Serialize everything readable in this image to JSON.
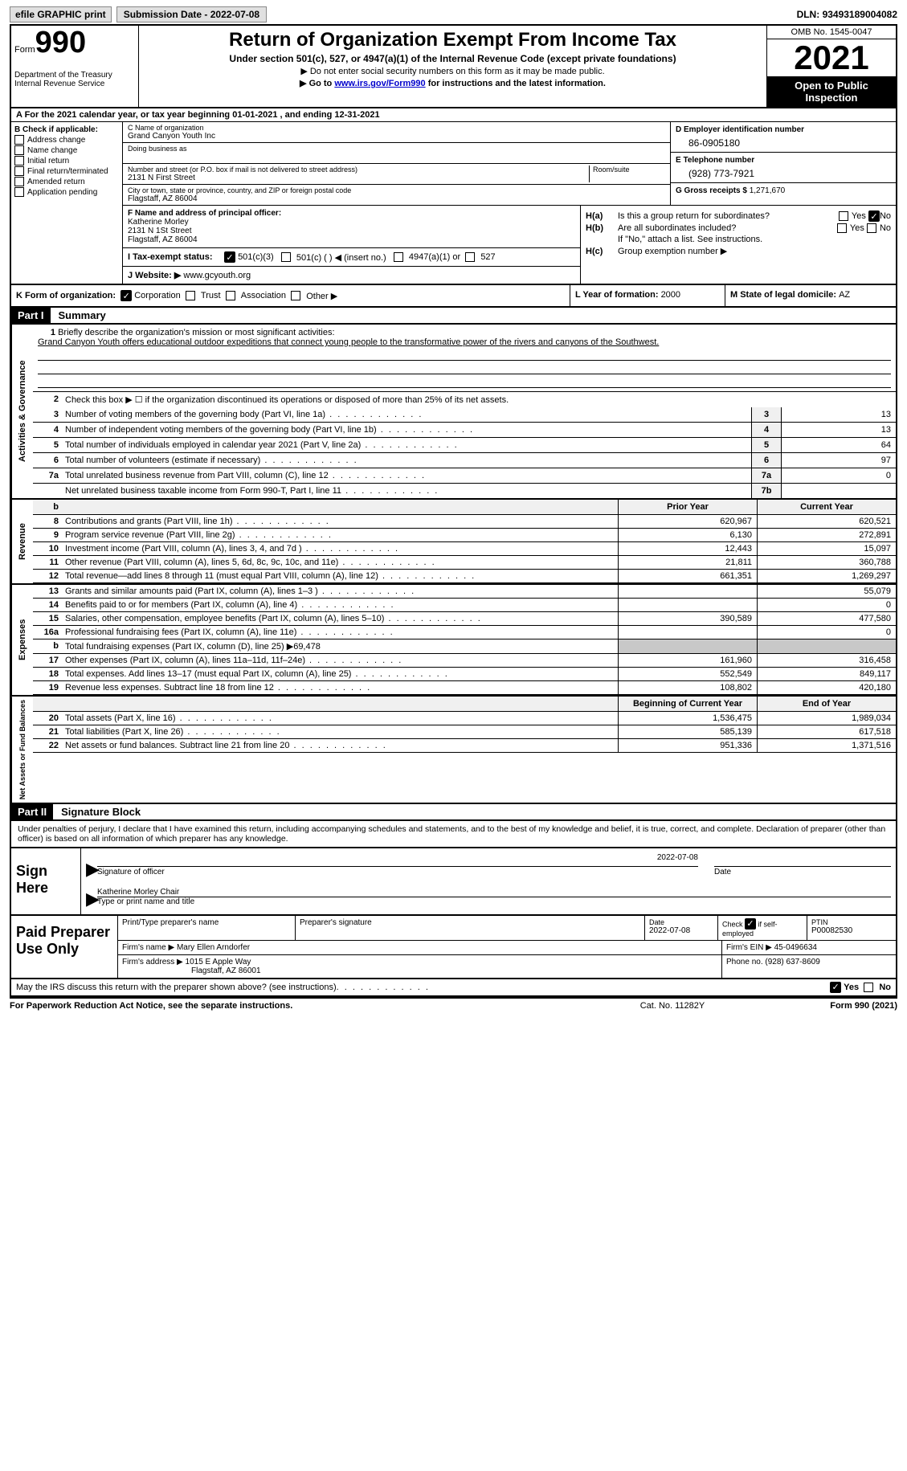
{
  "topbar": {
    "efile": "efile GRAPHIC print",
    "submission_label": "Submission Date - ",
    "submission_date": "2022-07-08",
    "dln_label": "DLN: ",
    "dln": "93493189004082"
  },
  "header": {
    "form_word": "Form",
    "form_num": "990",
    "dept": "Department of the Treasury\nInternal Revenue Service",
    "title": "Return of Organization Exempt From Income Tax",
    "sub1": "Under section 501(c), 527, or 4947(a)(1) of the Internal Revenue Code (except private foundations)",
    "sub2": "▶ Do not enter social security numbers on this form as it may be made public.",
    "sub3_pre": "▶ Go to ",
    "sub3_link": "www.irs.gov/Form990",
    "sub3_post": " for instructions and the latest information.",
    "omb": "OMB No. 1545-0047",
    "year": "2021",
    "open": "Open to Public Inspection"
  },
  "period": {
    "text_a": "A For the 2021 calendar year, or tax year beginning ",
    "begin": "01-01-2021",
    "mid": "   , and ending ",
    "end": "12-31-2021"
  },
  "colB": {
    "hdr": "B Check if applicable:",
    "opts": [
      "Address change",
      "Name change",
      "Initial return",
      "Final return/terminated",
      "Amended return",
      "Application pending"
    ]
  },
  "colC": {
    "name_lbl": "C Name of organization",
    "name": "Grand Canyon Youth Inc",
    "dba_lbl": "Doing business as",
    "addr_lbl": "Number and street (or P.O. box if mail is not delivered to street address)",
    "room_lbl": "Room/suite",
    "addr": "2131 N First Street",
    "city_lbl": "City or town, state or province, country, and ZIP or foreign postal code",
    "city": "Flagstaff, AZ  86004"
  },
  "colD": {
    "ein_lbl": "D Employer identification number",
    "ein": "86-0905180",
    "tel_lbl": "E Telephone number",
    "tel": "(928) 773-7921",
    "gross_lbl": "G Gross receipts $ ",
    "gross": "1,271,670"
  },
  "F": {
    "lbl": "F  Name and address of principal officer:",
    "name": "Katherine Morley",
    "addr1": "2131 N 1St Street",
    "addr2": "Flagstaff, AZ  86004"
  },
  "H": {
    "a_lbl": "H(a)",
    "a_txt": "Is this a group return for subordinates?",
    "b_lbl": "H(b)",
    "b_txt": "Are all subordinates included?",
    "note": "If \"No,\" attach a list. See instructions.",
    "c_lbl": "H(c)",
    "c_txt": "Group exemption number ▶",
    "yes": "Yes",
    "no": "No"
  },
  "I": {
    "lbl": "I    Tax-exempt status:",
    "opts": [
      "501(c)(3)",
      "501(c) (  ) ◀ (insert no.)",
      "4947(a)(1) or",
      "527"
    ]
  },
  "J": {
    "lbl": "J   Website: ▶",
    "val": "  www.gcyouth.org"
  },
  "K": {
    "lbl": "K Form of organization:",
    "opts": [
      "Corporation",
      "Trust",
      "Association",
      "Other ▶"
    ],
    "L_lbl": "L Year of formation: ",
    "L_val": "2000",
    "M_lbl": "M State of legal domicile: ",
    "M_val": "AZ"
  },
  "part1": {
    "num": "Part I",
    "title": "Summary"
  },
  "summary": {
    "q1_lbl": "1",
    "q1_txt": "Briefly describe the organization's mission or most significant activities:",
    "mission": "Grand Canyon Youth offers educational outdoor expeditions that connect young people to the transformative power of the rivers and canyons of the Southwest.",
    "q2_lbl": "2",
    "q2_txt": "Check this box ▶ ☐  if the organization discontinued its operations or disposed of more than 25% of its net assets.",
    "rows_ag": [
      {
        "n": "3",
        "t": "Number of voting members of the governing body (Part VI, line 1a)",
        "box": "3",
        "v": "13"
      },
      {
        "n": "4",
        "t": "Number of independent voting members of the governing body (Part VI, line 1b)",
        "box": "4",
        "v": "13"
      },
      {
        "n": "5",
        "t": "Total number of individuals employed in calendar year 2021 (Part V, line 2a)",
        "box": "5",
        "v": "64"
      },
      {
        "n": "6",
        "t": "Total number of volunteers (estimate if necessary)",
        "box": "6",
        "v": "97"
      },
      {
        "n": "7a",
        "t": "Total unrelated business revenue from Part VIII, column (C), line 12",
        "box": "7a",
        "v": "0"
      },
      {
        "n": " ",
        "t": "Net unrelated business taxable income from Form 990-T, Part I, line 11",
        "box": "7b",
        "v": ""
      }
    ],
    "hdr_b": "b",
    "prior_hdr": "Prior Year",
    "curr_hdr": "Current Year",
    "rev_rows": [
      {
        "n": "8",
        "t": "Contributions and grants (Part VIII, line 1h)",
        "p": "620,967",
        "c": "620,521"
      },
      {
        "n": "9",
        "t": "Program service revenue (Part VIII, line 2g)",
        "p": "6,130",
        "c": "272,891"
      },
      {
        "n": "10",
        "t": "Investment income (Part VIII, column (A), lines 3, 4, and 7d )",
        "p": "12,443",
        "c": "15,097"
      },
      {
        "n": "11",
        "t": "Other revenue (Part VIII, column (A), lines 5, 6d, 8c, 9c, 10c, and 11e)",
        "p": "21,811",
        "c": "360,788"
      },
      {
        "n": "12",
        "t": "Total revenue—add lines 8 through 11 (must equal Part VIII, column (A), line 12)",
        "p": "661,351",
        "c": "1,269,297"
      }
    ],
    "exp_rows": [
      {
        "n": "13",
        "t": "Grants and similar amounts paid (Part IX, column (A), lines 1–3 )",
        "p": "",
        "c": "55,079"
      },
      {
        "n": "14",
        "t": "Benefits paid to or for members (Part IX, column (A), line 4)",
        "p": "",
        "c": "0"
      },
      {
        "n": "15",
        "t": "Salaries, other compensation, employee benefits (Part IX, column (A), lines 5–10)",
        "p": "390,589",
        "c": "477,580"
      },
      {
        "n": "16a",
        "t": "Professional fundraising fees (Part IX, column (A), line 11e)",
        "p": "",
        "c": "0"
      },
      {
        "n": "b",
        "t": "Total fundraising expenses (Part IX, column (D), line 25) ▶69,478",
        "p": "SHADE",
        "c": "SHADE"
      },
      {
        "n": "17",
        "t": "Other expenses (Part IX, column (A), lines 11a–11d, 11f–24e)",
        "p": "161,960",
        "c": "316,458"
      },
      {
        "n": "18",
        "t": "Total expenses. Add lines 13–17 (must equal Part IX, column (A), line 25)",
        "p": "552,549",
        "c": "849,117"
      },
      {
        "n": "19",
        "t": "Revenue less expenses. Subtract line 18 from line 12",
        "p": "108,802",
        "c": "420,180"
      }
    ],
    "na_hdr_l": "Beginning of Current Year",
    "na_hdr_r": "End of Year",
    "na_rows": [
      {
        "n": "20",
        "t": "Total assets (Part X, line 16)",
        "p": "1,536,475",
        "c": "1,989,034"
      },
      {
        "n": "21",
        "t": "Total liabilities (Part X, line 26)",
        "p": "585,139",
        "c": "617,518"
      },
      {
        "n": "22",
        "t": "Net assets or fund balances. Subtract line 21 from line 20",
        "p": "951,336",
        "c": "1,371,516"
      }
    ],
    "side_ag": "Activities & Governance",
    "side_rev": "Revenue",
    "side_exp": "Expenses",
    "side_na": "Net Assets or Fund Balances"
  },
  "part2": {
    "num": "Part II",
    "title": "Signature Block",
    "decl": "Under penalties of perjury, I declare that I have examined this return, including accompanying schedules and statements, and to the best of my knowledge and belief, it is true, correct, and complete. Declaration of preparer (other than officer) is based on all information of which preparer has any knowledge."
  },
  "sign": {
    "lbl": "Sign Here",
    "sig_of": "Signature of officer",
    "date": "2022-07-08",
    "date_lbl": "Date",
    "name": "Katherine Morley  Chair",
    "name_lbl": "Type or print name and title"
  },
  "prep": {
    "lbl": "Paid Preparer Use Only",
    "c1": "Print/Type preparer's name",
    "c2": "Preparer's signature",
    "c3_lbl": "Date",
    "c3": "2022-07-08",
    "c4_lbl": "Check ☑ if self-employed",
    "c5_lbl": "PTIN",
    "c5": "P00082530",
    "firm_name_lbl": "Firm's name    ▶ ",
    "firm_name": "Mary Ellen Arndorfer",
    "firm_ein_lbl": "Firm's EIN ▶ ",
    "firm_ein": "45-0496634",
    "firm_addr_lbl": "Firm's address ▶ ",
    "firm_addr1": "1015 E Apple Way",
    "firm_addr2": "Flagstaff, AZ  86001",
    "phone_lbl": "Phone no. ",
    "phone": "(928) 637-8609"
  },
  "discuss": {
    "txt": "May the IRS discuss this return with the preparer shown above? (see instructions)",
    "yes": "Yes",
    "no": "No"
  },
  "footer": {
    "left": "For Paperwork Reduction Act Notice, see the separate instructions.",
    "mid": "Cat. No. 11282Y",
    "right": "Form 990 (2021)"
  }
}
